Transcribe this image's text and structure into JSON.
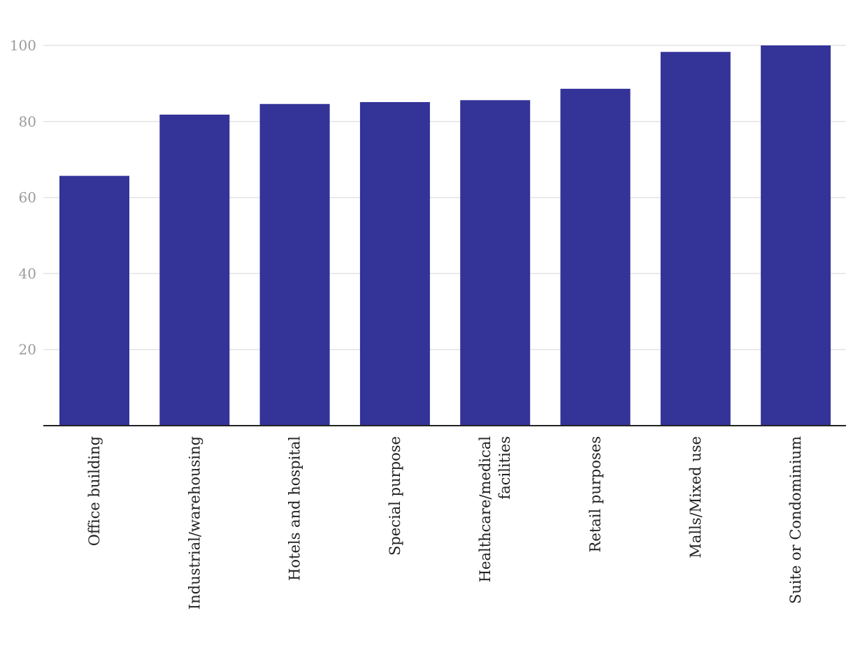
{
  "chart_data": {
    "type": "bar",
    "title": "",
    "xlabel": "",
    "ylabel": "",
    "ylim": [
      0,
      100
    ],
    "yticks": [
      20,
      40,
      60,
      80,
      100
    ],
    "grid": true,
    "bar_color": "#343398",
    "categories": [
      [
        "Office building"
      ],
      [
        "Industrial/warehousing"
      ],
      [
        "Hotels and hospital"
      ],
      [
        "Special purpose"
      ],
      [
        "Healthcare/medical",
        "facilities"
      ],
      [
        "Retail purposes"
      ],
      [
        "Malls/Mixed use"
      ],
      [
        "Suite or Condominium"
      ]
    ],
    "values": [
      65.7,
      81.8,
      84.6,
      85.1,
      85.6,
      88.6,
      98.3,
      100
    ]
  }
}
